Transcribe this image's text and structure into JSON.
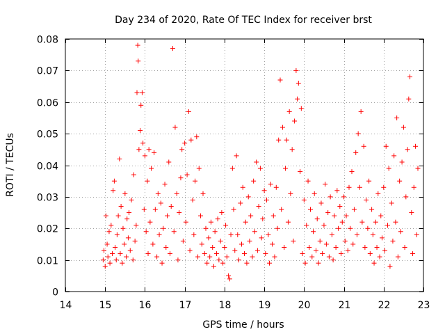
{
  "chart_data": {
    "type": "scatter",
    "title": "Day 234 of 2020, Rate Of TEC Index for receiver brst",
    "xlabel": "GPS time / hours",
    "ylabel": "ROTI / TECUs",
    "xlim": [
      14,
      23
    ],
    "ylim": [
      0,
      0.08
    ],
    "xticks": [
      14,
      15,
      16,
      17,
      18,
      19,
      20,
      21,
      22,
      23
    ],
    "yticks": [
      0,
      0.01,
      0.02,
      0.03,
      0.04,
      0.05,
      0.06,
      0.07,
      0.08
    ],
    "xtick_labels": [
      "14",
      "15",
      "16",
      "17",
      "18",
      "19",
      "20",
      "21",
      "22",
      "23"
    ],
    "ytick_labels": [
      "0",
      "0.01",
      "0.02",
      "0.03",
      "0.04",
      "0.05",
      "0.06",
      "0.07",
      "0.08"
    ],
    "grid": true,
    "marker": "+",
    "marker_color": "#ff0000",
    "series": [
      {
        "name": "ROTI",
        "points": [
          [
            14.95,
            0.01
          ],
          [
            14.97,
            0.013
          ],
          [
            15.0,
            0.008
          ],
          [
            15.02,
            0.024
          ],
          [
            15.05,
            0.015
          ],
          [
            15.07,
            0.011
          ],
          [
            15.1,
            0.019
          ],
          [
            15.12,
            0.009
          ],
          [
            15.15,
            0.021
          ],
          [
            15.18,
            0.012
          ],
          [
            15.2,
            0.032
          ],
          [
            15.23,
            0.035
          ],
          [
            15.25,
            0.014
          ],
          [
            15.28,
            0.01
          ],
          [
            15.3,
            0.018
          ],
          [
            15.33,
            0.024
          ],
          [
            15.36,
            0.042
          ],
          [
            15.38,
            0.012
          ],
          [
            15.4,
            0.027
          ],
          [
            15.43,
            0.009
          ],
          [
            15.45,
            0.02
          ],
          [
            15.48,
            0.015
          ],
          [
            15.5,
            0.031
          ],
          [
            15.53,
            0.011
          ],
          [
            15.55,
            0.023
          ],
          [
            15.58,
            0.017
          ],
          [
            15.6,
            0.025
          ],
          [
            15.63,
            0.013
          ],
          [
            15.66,
            0.029
          ],
          [
            15.7,
            0.01
          ],
          [
            15.72,
            0.037
          ],
          [
            15.75,
            0.016
          ],
          [
            15.78,
            0.021
          ],
          [
            15.8,
            0.063
          ],
          [
            15.82,
            0.078
          ],
          [
            15.83,
            0.073
          ],
          [
            15.85,
            0.045
          ],
          [
            15.88,
            0.051
          ],
          [
            15.9,
            0.059
          ],
          [
            15.93,
            0.063
          ],
          [
            15.95,
            0.047
          ],
          [
            15.98,
            0.026
          ],
          [
            16.0,
            0.043
          ],
          [
            16.03,
            0.019
          ],
          [
            16.06,
            0.035
          ],
          [
            16.08,
            0.012
          ],
          [
            16.1,
            0.045
          ],
          [
            16.13,
            0.022
          ],
          [
            16.16,
            0.039
          ],
          [
            16.2,
            0.015
          ],
          [
            16.23,
            0.044
          ],
          [
            16.26,
            0.026
          ],
          [
            16.3,
            0.011
          ],
          [
            16.33,
            0.031
          ],
          [
            16.36,
            0.018
          ],
          [
            16.4,
            0.028
          ],
          [
            16.43,
            0.009
          ],
          [
            16.46,
            0.02
          ],
          [
            16.5,
            0.034
          ],
          [
            16.53,
            0.014
          ],
          [
            16.56,
            0.024
          ],
          [
            16.6,
            0.041
          ],
          [
            16.63,
            0.012
          ],
          [
            16.66,
            0.027
          ],
          [
            16.7,
            0.077
          ],
          [
            16.73,
            0.019
          ],
          [
            16.76,
            0.052
          ],
          [
            16.8,
            0.031
          ],
          [
            16.83,
            0.01
          ],
          [
            16.86,
            0.025
          ],
          [
            16.9,
            0.036
          ],
          [
            16.93,
            0.045
          ],
          [
            16.96,
            0.016
          ],
          [
            17.0,
            0.047
          ],
          [
            17.03,
            0.022
          ],
          [
            17.06,
            0.037
          ],
          [
            17.1,
            0.057
          ],
          [
            17.13,
            0.013
          ],
          [
            17.16,
            0.048
          ],
          [
            17.2,
            0.029
          ],
          [
            17.23,
            0.018
          ],
          [
            17.26,
            0.035
          ],
          [
            17.3,
            0.049
          ],
          [
            17.33,
            0.011
          ],
          [
            17.36,
            0.039
          ],
          [
            17.4,
            0.024
          ],
          [
            17.43,
            0.015
          ],
          [
            17.46,
            0.031
          ],
          [
            17.5,
            0.012
          ],
          [
            17.53,
            0.02
          ],
          [
            17.56,
            0.009
          ],
          [
            17.6,
            0.017
          ],
          [
            17.63,
            0.011
          ],
          [
            17.66,
            0.022
          ],
          [
            17.7,
            0.014
          ],
          [
            17.73,
            0.008
          ],
          [
            17.76,
            0.019
          ],
          [
            17.8,
            0.012
          ],
          [
            17.83,
            0.023
          ],
          [
            17.86,
            0.01
          ],
          [
            17.9,
            0.016
          ],
          [
            17.93,
            0.025
          ],
          [
            17.96,
            0.009
          ],
          [
            18.0,
            0.014
          ],
          [
            18.03,
            0.021
          ],
          [
            18.06,
            0.011
          ],
          [
            18.1,
            0.005
          ],
          [
            18.13,
            0.004
          ],
          [
            18.16,
            0.018
          ],
          [
            18.2,
            0.039
          ],
          [
            18.23,
            0.026
          ],
          [
            18.26,
            0.013
          ],
          [
            18.3,
            0.043
          ],
          [
            18.33,
            0.018
          ],
          [
            18.36,
            0.01
          ],
          [
            18.4,
            0.028
          ],
          [
            18.43,
            0.015
          ],
          [
            18.46,
            0.033
          ],
          [
            18.5,
            0.012
          ],
          [
            18.53,
            0.022
          ],
          [
            18.56,
            0.009
          ],
          [
            18.6,
            0.03
          ],
          [
            18.63,
            0.016
          ],
          [
            18.66,
            0.024
          ],
          [
            18.7,
            0.011
          ],
          [
            18.73,
            0.035
          ],
          [
            18.76,
            0.019
          ],
          [
            18.8,
            0.041
          ],
          [
            18.83,
            0.013
          ],
          [
            18.86,
            0.027
          ],
          [
            18.9,
            0.039
          ],
          [
            18.93,
            0.017
          ],
          [
            18.96,
            0.023
          ],
          [
            19.0,
            0.032
          ],
          [
            19.03,
            0.012
          ],
          [
            19.06,
            0.029
          ],
          [
            19.1,
            0.018
          ],
          [
            19.13,
            0.009
          ],
          [
            19.16,
            0.034
          ],
          [
            19.2,
            0.015
          ],
          [
            19.23,
            0.024
          ],
          [
            19.26,
            0.011
          ],
          [
            19.3,
            0.033
          ],
          [
            19.33,
            0.02
          ],
          [
            19.36,
            0.048
          ],
          [
            19.4,
            0.067
          ],
          [
            19.43,
            0.026
          ],
          [
            19.46,
            0.052
          ],
          [
            19.5,
            0.014
          ],
          [
            19.53,
            0.039
          ],
          [
            19.56,
            0.048
          ],
          [
            19.6,
            0.022
          ],
          [
            19.63,
            0.057
          ],
          [
            19.66,
            0.031
          ],
          [
            19.7,
            0.045
          ],
          [
            19.73,
            0.016
          ],
          [
            19.76,
            0.054
          ],
          [
            19.8,
            0.07
          ],
          [
            19.83,
            0.061
          ],
          [
            19.86,
            0.066
          ],
          [
            19.9,
            0.038
          ],
          [
            19.93,
            0.058
          ],
          [
            19.96,
            0.012
          ],
          [
            20.0,
            0.029
          ],
          [
            20.03,
            0.009
          ],
          [
            20.06,
            0.021
          ],
          [
            20.1,
            0.035
          ],
          [
            20.13,
            0.014
          ],
          [
            20.16,
            0.026
          ],
          [
            20.2,
            0.011
          ],
          [
            20.23,
            0.019
          ],
          [
            20.26,
            0.031
          ],
          [
            20.3,
            0.013
          ],
          [
            20.33,
            0.023
          ],
          [
            20.36,
            0.009
          ],
          [
            20.4,
            0.016
          ],
          [
            20.43,
            0.028
          ],
          [
            20.46,
            0.012
          ],
          [
            20.5,
            0.021
          ],
          [
            20.53,
            0.034
          ],
          [
            20.56,
            0.015
          ],
          [
            20.6,
            0.025
          ],
          [
            20.63,
            0.011
          ],
          [
            20.66,
            0.03
          ],
          [
            20.7,
            0.018
          ],
          [
            20.73,
            0.01
          ],
          [
            20.76,
            0.024
          ],
          [
            20.8,
            0.014
          ],
          [
            20.83,
            0.032
          ],
          [
            20.86,
            0.02
          ],
          [
            20.9,
            0.027
          ],
          [
            20.93,
            0.012
          ],
          [
            20.96,
            0.022
          ],
          [
            21.0,
            0.03
          ],
          [
            21.03,
            0.016
          ],
          [
            21.06,
            0.024
          ],
          [
            21.1,
            0.013
          ],
          [
            21.13,
            0.033
          ],
          [
            21.16,
            0.02
          ],
          [
            21.2,
            0.038
          ],
          [
            21.23,
            0.015
          ],
          [
            21.26,
            0.026
          ],
          [
            21.3,
            0.044
          ],
          [
            21.33,
            0.018
          ],
          [
            21.36,
            0.05
          ],
          [
            21.4,
            0.033
          ],
          [
            21.43,
            0.057
          ],
          [
            21.46,
            0.022
          ],
          [
            21.5,
            0.046
          ],
          [
            21.53,
            0.014
          ],
          [
            21.56,
            0.029
          ],
          [
            21.6,
            0.02
          ],
          [
            21.63,
            0.035
          ],
          [
            21.66,
            0.012
          ],
          [
            21.7,
            0.026
          ],
          [
            21.73,
            0.018
          ],
          [
            21.76,
            0.009
          ],
          [
            21.8,
            0.022
          ],
          [
            21.83,
            0.014
          ],
          [
            21.86,
            0.031
          ],
          [
            21.9,
            0.011
          ],
          [
            21.93,
            0.024
          ],
          [
            21.96,
            0.017
          ],
          [
            22.0,
            0.033
          ],
          [
            22.03,
            0.013
          ],
          [
            22.06,
            0.046
          ],
          [
            22.1,
            0.021
          ],
          [
            22.13,
            0.039
          ],
          [
            22.16,
            0.008
          ],
          [
            22.2,
            0.028
          ],
          [
            22.23,
            0.016
          ],
          [
            22.26,
            0.043
          ],
          [
            22.3,
            0.022
          ],
          [
            22.33,
            0.055
          ],
          [
            22.36,
            0.011
          ],
          [
            22.4,
            0.035
          ],
          [
            22.43,
            0.019
          ],
          [
            22.46,
            0.041
          ],
          [
            22.5,
            0.052
          ],
          [
            22.53,
            0.014
          ],
          [
            22.56,
            0.03
          ],
          [
            22.6,
            0.045
          ],
          [
            22.63,
            0.061
          ],
          [
            22.66,
            0.068
          ],
          [
            22.7,
            0.025
          ],
          [
            22.73,
            0.012
          ],
          [
            22.76,
            0.033
          ],
          [
            22.8,
            0.046
          ],
          [
            22.83,
            0.018
          ],
          [
            22.86,
            0.039
          ]
        ]
      }
    ]
  }
}
